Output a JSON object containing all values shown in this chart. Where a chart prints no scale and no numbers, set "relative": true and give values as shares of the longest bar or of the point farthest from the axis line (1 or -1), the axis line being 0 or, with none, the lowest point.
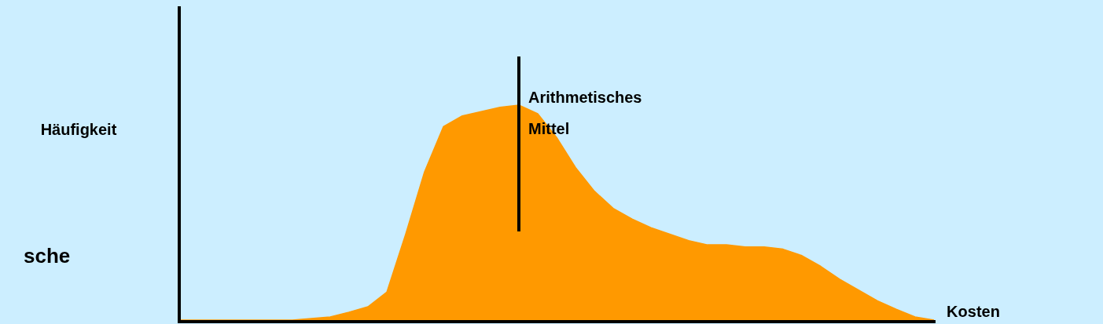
{
  "chart_data": {
    "type": "area",
    "relative": true,
    "xlabel": "Kosten",
    "ylabel": "Häufigkeit",
    "annotations": [
      "sche",
      "Arithmetisches\nMittel"
    ],
    "categories": [
      null,
      null,
      null,
      null,
      null,
      null,
      null,
      null,
      null,
      null,
      null,
      null,
      null,
      null,
      null,
      null,
      null,
      null,
      null,
      null,
      null,
      null,
      null,
      null,
      null,
      null,
      null,
      null,
      null,
      null,
      null,
      null,
      null,
      null,
      null,
      null,
      null,
      null,
      null,
      null,
      null
    ],
    "tick_labels": false,
    "legend": false,
    "marker": "none",
    "series": [
      {
        "color": "#ff9900",
        "values": [
          0,
          0,
          0,
          0,
          0,
          0,
          0,
          0.007,
          0.015,
          0.037,
          0.062,
          0.13,
          0.4,
          0.69,
          0.9,
          0.95,
          0.97,
          0.99,
          1,
          0.96,
          0.85,
          0.71,
          0.6,
          0.52,
          0.47,
          0.43,
          0.4,
          0.37,
          0.35,
          0.35,
          0.34,
          0.34,
          0.33,
          0.3,
          0.25,
          0.19,
          0.14,
          0.09,
          0.05,
          0.015,
          0
        ]
      }
    ]
  }
}
